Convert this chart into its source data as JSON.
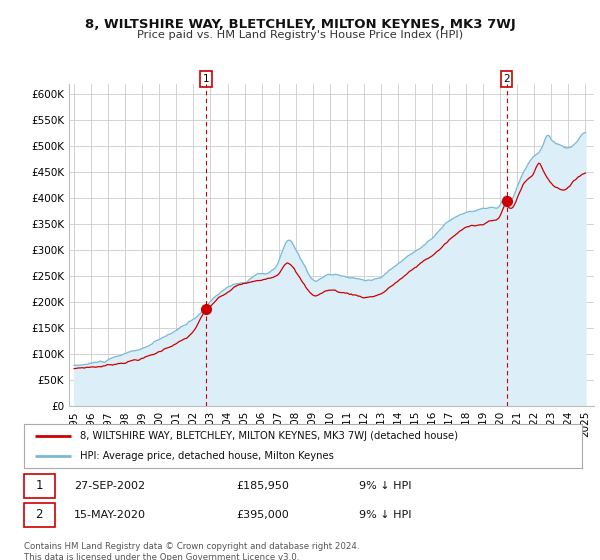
{
  "title": "8, WILTSHIRE WAY, BLETCHLEY, MILTON KEYNES, MK3 7WJ",
  "subtitle": "Price paid vs. HM Land Registry's House Price Index (HPI)",
  "ylabel_values": [
    "£0",
    "£50K",
    "£100K",
    "£150K",
    "£200K",
    "£250K",
    "£300K",
    "£350K",
    "£400K",
    "£450K",
    "£500K",
    "£550K",
    "£600K"
  ],
  "yticks": [
    0,
    50000,
    100000,
    150000,
    200000,
    250000,
    300000,
    350000,
    400000,
    450000,
    500000,
    550000,
    600000
  ],
  "ylim": [
    0,
    620000
  ],
  "transaction1": {
    "date": "27-SEP-2002",
    "price": 185950,
    "label": "1",
    "year": 2002.75
  },
  "transaction2": {
    "date": "15-MAY-2020",
    "price": 395000,
    "label": "2",
    "year": 2020.37
  },
  "legend_line1": "8, WILTSHIRE WAY, BLETCHLEY, MILTON KEYNES, MK3 7WJ (detached house)",
  "legend_line2": "HPI: Average price, detached house, Milton Keynes",
  "footer": "Contains HM Land Registry data © Crown copyright and database right 2024.\nThis data is licensed under the Open Government Licence v3.0.",
  "line_color_property": "#cc0000",
  "line_color_hpi": "#7ab8d8",
  "fill_color_hpi": "#dceef7",
  "background_color": "#ffffff",
  "grid_color": "#cccccc",
  "xtick_years": [
    1995,
    1996,
    1997,
    1998,
    1999,
    2000,
    2001,
    2002,
    2003,
    2004,
    2005,
    2006,
    2007,
    2008,
    2009,
    2010,
    2011,
    2012,
    2013,
    2014,
    2015,
    2016,
    2017,
    2018,
    2019,
    2020,
    2021,
    2022,
    2023,
    2024,
    2025
  ]
}
